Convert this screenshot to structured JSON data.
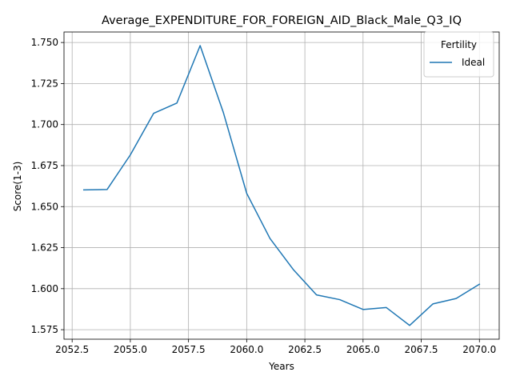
{
  "chart_data": {
    "type": "line",
    "title": "Average_EXPENDITURE_FOR_FOREIGN_AID_Black_Male_Q3_IQ",
    "xlabel": "Years",
    "ylabel": "Score(1-3)",
    "xlim": [
      2052.15,
      2070.85
    ],
    "ylim": [
      1.5692,
      1.7564
    ],
    "xticks": [
      2052.5,
      2055.0,
      2057.5,
      2060.0,
      2062.5,
      2065.0,
      2067.5,
      2070.0
    ],
    "xtick_labels": [
      "2052.5",
      "2055.0",
      "2057.5",
      "2060.0",
      "2062.5",
      "2065.0",
      "2067.5",
      "2070.0"
    ],
    "yticks": [
      1.575,
      1.6,
      1.625,
      1.65,
      1.675,
      1.7,
      1.725,
      1.75
    ],
    "ytick_labels": [
      "1.575",
      "1.600",
      "1.625",
      "1.650",
      "1.675",
      "1.700",
      "1.725",
      "1.750"
    ],
    "grid": true,
    "legend": {
      "title": "Fertility",
      "placement": "top-right"
    },
    "x": [
      2053,
      2054,
      2055,
      2056,
      2057,
      2058,
      2059,
      2060,
      2061,
      2062,
      2063,
      2064,
      2065,
      2066,
      2067,
      2068,
      2069,
      2070
    ],
    "series": [
      {
        "name": "Ideal",
        "color": "#1f77b4",
        "values": [
          1.6602,
          1.6604,
          1.6815,
          1.7068,
          1.7131,
          1.7481,
          1.7072,
          1.6581,
          1.6306,
          1.6117,
          1.5962,
          1.5933,
          1.5873,
          1.5885,
          1.5776,
          1.5907,
          1.594,
          1.6027
        ]
      }
    ]
  }
}
